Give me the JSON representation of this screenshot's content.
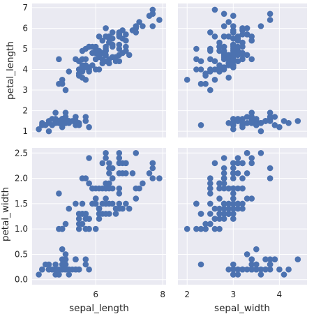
{
  "chart_data": {
    "type": "scatter",
    "layout": "pairgrid-2x2",
    "marker_color": "#4c72b0",
    "background_color": "#eaeaf2",
    "grid": true,
    "x_vars": [
      "sepal_length",
      "sepal_width"
    ],
    "y_vars": [
      "petal_length",
      "petal_width"
    ],
    "axes": {
      "sepal_length": {
        "label": "sepal_length",
        "range": [
          4.1,
          8.1
        ],
        "ticks": [
          6,
          8
        ],
        "tick_labels": [
          "6",
          "8"
        ]
      },
      "sepal_width": {
        "label": "sepal_width",
        "range": [
          1.8,
          4.6
        ],
        "ticks": [
          2,
          3,
          4
        ],
        "tick_labels": [
          "2",
          "3",
          "4"
        ]
      },
      "petal_length": {
        "label": "petal_length",
        "range": [
          0.7,
          7.2
        ],
        "ticks": [
          1,
          2,
          3,
          4,
          5,
          6,
          7
        ],
        "tick_labels": [
          "1",
          "2",
          "3",
          "4",
          "5",
          "6",
          "7"
        ]
      },
      "petal_width": {
        "label": "petal_width",
        "range": [
          -0.1,
          2.6
        ],
        "ticks": [
          0.0,
          0.5,
          1.0,
          1.5,
          2.0,
          2.5
        ],
        "tick_labels": [
          "0.0",
          "0.5",
          "1.0",
          "1.5",
          "2.0",
          "2.5"
        ]
      }
    },
    "points": {
      "sepal_length": [
        5.1,
        4.9,
        4.7,
        4.6,
        5.0,
        5.4,
        4.6,
        5.0,
        4.4,
        4.9,
        5.4,
        4.8,
        4.8,
        4.3,
        5.8,
        5.7,
        5.4,
        5.1,
        5.7,
        5.1,
        5.4,
        5.1,
        4.6,
        5.1,
        4.8,
        5.0,
        5.0,
        5.2,
        5.2,
        4.7,
        4.8,
        5.4,
        5.2,
        5.5,
        4.9,
        5.0,
        5.5,
        4.9,
        4.4,
        5.1,
        5.0,
        4.5,
        4.4,
        5.0,
        5.1,
        4.8,
        5.1,
        4.6,
        5.3,
        5.0,
        7.0,
        6.4,
        6.9,
        5.5,
        6.5,
        5.7,
        6.3,
        4.9,
        6.6,
        5.2,
        5.0,
        5.9,
        6.0,
        6.1,
        5.6,
        6.7,
        5.6,
        5.8,
        6.2,
        5.6,
        5.9,
        6.1,
        6.3,
        6.1,
        6.4,
        6.6,
        6.8,
        6.7,
        6.0,
        5.7,
        5.5,
        5.5,
        5.8,
        6.0,
        5.4,
        6.0,
        6.7,
        6.3,
        5.6,
        5.5,
        5.5,
        6.1,
        5.8,
        5.0,
        5.6,
        5.7,
        5.7,
        6.2,
        5.1,
        5.7,
        6.3,
        5.8,
        7.1,
        6.3,
        6.5,
        7.6,
        4.9,
        7.3,
        6.7,
        7.2,
        6.5,
        6.4,
        6.8,
        5.7,
        5.8,
        6.4,
        6.5,
        7.7,
        7.7,
        6.0,
        6.9,
        5.6,
        7.7,
        6.3,
        6.7,
        7.2,
        6.2,
        6.1,
        6.4,
        7.2,
        7.4,
        7.9,
        6.4,
        6.3,
        6.1,
        7.7,
        6.3,
        6.4,
        6.0,
        6.9,
        6.7,
        6.9,
        5.8,
        6.8,
        6.7,
        6.7,
        6.3,
        6.5,
        6.2,
        5.9
      ],
      "sepal_width": [
        3.5,
        3.0,
        3.2,
        3.1,
        3.6,
        3.9,
        3.4,
        3.4,
        2.9,
        3.1,
        3.7,
        3.4,
        3.0,
        3.0,
        4.0,
        4.4,
        3.9,
        3.5,
        3.8,
        3.8,
        3.4,
        3.7,
        3.6,
        3.3,
        3.4,
        3.0,
        3.4,
        3.5,
        3.4,
        3.2,
        3.1,
        3.4,
        4.1,
        4.2,
        3.1,
        3.2,
        3.5,
        3.6,
        3.0,
        3.4,
        3.5,
        2.3,
        3.2,
        3.5,
        3.8,
        3.0,
        3.8,
        3.2,
        3.7,
        3.3,
        3.2,
        3.2,
        3.1,
        2.3,
        2.8,
        2.8,
        3.3,
        2.4,
        2.9,
        2.7,
        2.0,
        3.0,
        2.2,
        2.9,
        2.9,
        3.1,
        3.0,
        2.7,
        2.2,
        2.5,
        3.2,
        2.8,
        2.5,
        2.8,
        2.9,
        3.0,
        2.8,
        3.0,
        2.9,
        2.6,
        2.4,
        2.4,
        2.7,
        2.7,
        3.0,
        3.4,
        3.1,
        2.3,
        3.0,
        2.5,
        2.6,
        3.0,
        2.6,
        2.3,
        2.7,
        3.0,
        2.9,
        2.9,
        2.5,
        2.8,
        3.3,
        2.7,
        3.0,
        2.9,
        3.0,
        3.0,
        2.5,
        2.9,
        2.5,
        3.6,
        3.2,
        2.7,
        3.0,
        2.5,
        2.8,
        3.2,
        3.0,
        3.8,
        2.6,
        2.2,
        3.2,
        2.8,
        2.8,
        2.7,
        3.3,
        3.2,
        2.8,
        3.0,
        2.8,
        3.0,
        2.8,
        3.8,
        2.8,
        2.8,
        2.6,
        3.0,
        3.4,
        3.1,
        3.0,
        3.1,
        3.1,
        3.1,
        2.7,
        3.2,
        3.3,
        3.0,
        2.5,
        3.0,
        3.4,
        3.0
      ],
      "petal_length": [
        1.4,
        1.4,
        1.3,
        1.5,
        1.4,
        1.7,
        1.4,
        1.5,
        1.4,
        1.5,
        1.5,
        1.6,
        1.4,
        1.1,
        1.2,
        1.5,
        1.3,
        1.4,
        1.7,
        1.5,
        1.7,
        1.5,
        1.0,
        1.7,
        1.9,
        1.6,
        1.6,
        1.5,
        1.4,
        1.6,
        1.6,
        1.5,
        1.5,
        1.4,
        1.5,
        1.2,
        1.3,
        1.4,
        1.3,
        1.5,
        1.3,
        1.3,
        1.3,
        1.6,
        1.9,
        1.4,
        1.6,
        1.4,
        1.5,
        1.4,
        4.7,
        4.5,
        4.9,
        4.0,
        4.6,
        4.5,
        4.7,
        3.3,
        4.6,
        3.9,
        3.5,
        4.2,
        4.0,
        4.7,
        3.6,
        4.4,
        4.5,
        4.1,
        4.5,
        3.9,
        4.8,
        4.0,
        4.9,
        4.7,
        4.3,
        4.4,
        4.8,
        5.0,
        4.5,
        3.5,
        3.8,
        3.7,
        3.9,
        5.1,
        4.5,
        4.5,
        4.7,
        4.4,
        4.1,
        4.0,
        4.4,
        4.6,
        4.0,
        3.3,
        4.2,
        4.2,
        4.2,
        4.3,
        3.0,
        4.1,
        6.0,
        5.1,
        5.9,
        5.6,
        5.8,
        6.6,
        4.5,
        6.3,
        5.8,
        6.1,
        5.1,
        5.3,
        5.5,
        5.0,
        5.1,
        5.3,
        5.5,
        6.7,
        6.9,
        5.0,
        5.7,
        4.9,
        6.7,
        4.9,
        5.7,
        6.0,
        4.8,
        4.9,
        5.6,
        5.8,
        6.1,
        6.4,
        5.6,
        5.1,
        5.6,
        6.1,
        5.6,
        5.5,
        4.8,
        5.4,
        5.6,
        5.1,
        5.1,
        5.9,
        5.7,
        5.2,
        5.0,
        5.2,
        5.4,
        5.1
      ],
      "petal_width": [
        0.2,
        0.2,
        0.2,
        0.2,
        0.2,
        0.4,
        0.3,
        0.2,
        0.2,
        0.1,
        0.2,
        0.2,
        0.1,
        0.1,
        0.2,
        0.4,
        0.4,
        0.3,
        0.3,
        0.3,
        0.2,
        0.4,
        0.2,
        0.5,
        0.2,
        0.2,
        0.4,
        0.2,
        0.2,
        0.2,
        0.2,
        0.4,
        0.1,
        0.2,
        0.2,
        0.2,
        0.2,
        0.1,
        0.2,
        0.2,
        0.3,
        0.3,
        0.2,
        0.6,
        0.4,
        0.3,
        0.2,
        0.2,
        0.2,
        0.2,
        1.4,
        1.5,
        1.5,
        1.3,
        1.5,
        1.3,
        1.6,
        1.0,
        1.3,
        1.4,
        1.0,
        1.5,
        1.0,
        1.4,
        1.3,
        1.4,
        1.5,
        1.0,
        1.5,
        1.1,
        1.8,
        1.3,
        1.5,
        1.2,
        1.3,
        1.4,
        1.4,
        1.7,
        1.5,
        1.0,
        1.1,
        1.0,
        1.2,
        1.6,
        1.5,
        1.6,
        1.5,
        1.3,
        1.3,
        1.3,
        1.2,
        1.4,
        1.2,
        1.0,
        1.3,
        1.2,
        1.3,
        1.3,
        1.1,
        1.3,
        2.5,
        1.9,
        2.1,
        1.8,
        2.2,
        2.1,
        1.7,
        1.8,
        1.8,
        2.5,
        2.0,
        1.9,
        2.1,
        2.0,
        2.4,
        2.3,
        1.8,
        2.2,
        2.3,
        1.5,
        2.3,
        2.0,
        2.0,
        1.8,
        2.1,
        1.8,
        1.8,
        1.8,
        2.1,
        1.6,
        1.9,
        2.0,
        2.2,
        1.5,
        1.4,
        2.3,
        2.4,
        1.8,
        1.8,
        2.1,
        2.4,
        2.3,
        1.9,
        2.3,
        2.5,
        2.3,
        1.9,
        2.0,
        2.3,
        1.8
      ]
    }
  }
}
